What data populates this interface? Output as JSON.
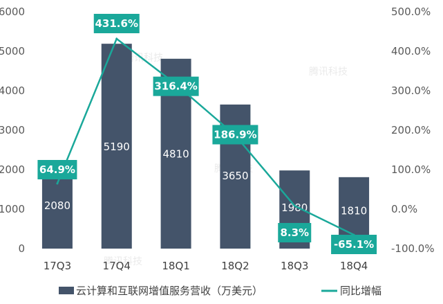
{
  "colors": {
    "bar": "#44546a",
    "line": "#1aa89a",
    "label_box": "#1aa89a",
    "axis_text": "#595959"
  },
  "watermark": "腾讯科技",
  "chart_data": {
    "type": "bar",
    "categories": [
      "17Q3",
      "17Q4",
      "18Q1",
      "18Q2",
      "18Q3",
      "18Q4"
    ],
    "series": [
      {
        "name": "云计算和互联网增值服务营收（万美元）",
        "type": "bar",
        "axis": "left",
        "values": [
          2080,
          5190,
          4810,
          3650,
          1980,
          1810
        ],
        "labels": [
          "2080",
          "5190",
          "4810",
          "3650",
          "1980",
          "1810"
        ]
      },
      {
        "name": "同比增幅",
        "type": "line",
        "axis": "right",
        "values": [
          64.9,
          431.6,
          316.4,
          186.9,
          8.3,
          -65.1
        ],
        "labels": [
          "64.9%",
          "431.6%",
          "316.4%",
          "186.9%",
          "8.3%",
          "-65.1%"
        ]
      }
    ],
    "y_left": {
      "min": 0,
      "max": 6000,
      "ticks": [
        "0",
        "1000",
        "2000",
        "3000",
        "4000",
        "5000",
        "6000"
      ]
    },
    "y_right": {
      "min": -100,
      "max": 500,
      "ticks": [
        "-100.0%",
        "0.0%",
        "100.0%",
        "200.0%",
        "300.0%",
        "400.0%",
        "500.0%"
      ]
    },
    "legend": [
      "云计算和互联网增值服务营收（万美元）",
      "同比增幅"
    ],
    "legend_position": "bottom",
    "grid": false
  }
}
